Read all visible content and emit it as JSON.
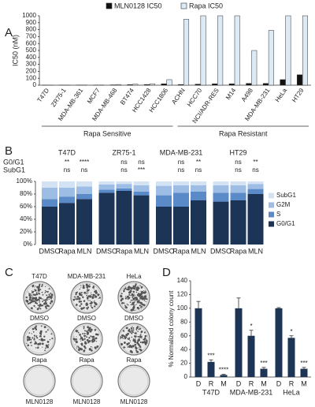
{
  "chart_data": [
    {
      "type": "grouped-bar",
      "panel": "A",
      "ylabel": "IC50 (nM)",
      "categories": [
        "T47D",
        "ZR75-1",
        "MDA-MB-361",
        "MCF7",
        "MDA-MB-468",
        "BT474",
        "HCC1428",
        "HCC1806",
        "ACHN",
        "HCC70",
        "NCI/ADR-RES",
        "M14",
        "A498",
        "MDA-MB-231",
        "HeLa",
        "HT29"
      ],
      "group_labels": [
        "Rapa Sensitive",
        "Rapa Resistant"
      ],
      "series": [
        {
          "name": "MLN0128 IC50",
          "color": "#111111",
          "values": [
            2,
            2,
            3,
            3,
            5,
            8,
            10,
            20,
            10,
            15,
            20,
            20,
            25,
            25,
            80,
            150
          ]
        },
        {
          "name": "Rapa IC50",
          "color": "#dceaf6",
          "values": [
            2,
            2,
            3,
            3,
            10,
            15,
            20,
            80,
            950,
            1000,
            1000,
            1000,
            500,
            790,
            1000,
            1000
          ]
        }
      ],
      "ylim": [
        0,
        1000
      ],
      "yticks": [
        0,
        100,
        200,
        300,
        400,
        500,
        600,
        700,
        800,
        900,
        1000
      ],
      "grid": false
    },
    {
      "type": "stacked-bar",
      "panel": "B",
      "groups": [
        "T47D",
        "ZR75-1",
        "MDA-MB-231",
        "HT29"
      ],
      "categories": [
        "DMSO",
        "Rapa",
        "MLN",
        "DMSO",
        "Rapa",
        "MLN",
        "DMSO",
        "Rapa",
        "MLN",
        "DMSO",
        "Rapa",
        "MLN"
      ],
      "significance": [
        {
          "label": "G0/G1",
          "values": [
            null,
            "**",
            "****",
            null,
            "ns",
            "ns",
            null,
            "ns",
            "**",
            null,
            "ns",
            "**"
          ]
        },
        {
          "label": "SubG1",
          "values": [
            null,
            "ns",
            "ns",
            null,
            "ns",
            "***",
            null,
            "ns",
            "ns",
            null,
            "ns",
            "ns"
          ]
        }
      ],
      "series": [
        {
          "name": "G0/G1",
          "color": "#1c3557",
          "values": [
            60,
            66,
            72,
            82,
            85,
            78,
            60,
            60,
            70,
            68,
            70,
            80
          ]
        },
        {
          "name": "S",
          "color": "#5a8bc8",
          "values": [
            12,
            10,
            8,
            5,
            4,
            6,
            18,
            22,
            14,
            14,
            12,
            8
          ]
        },
        {
          "name": "G2M",
          "color": "#9dbde4",
          "values": [
            18,
            14,
            12,
            8,
            7,
            10,
            15,
            12,
            10,
            12,
            12,
            8
          ]
        },
        {
          "name": "SubG1",
          "color": "#d3e3f4",
          "values": [
            10,
            10,
            8,
            5,
            4,
            6,
            7,
            6,
            6,
            6,
            6,
            4
          ]
        }
      ],
      "ylim": [
        0,
        100
      ],
      "yticks": [
        {
          "value": 0,
          "label": "0%"
        },
        {
          "value": 20,
          "label": "20%"
        },
        {
          "value": 40,
          "label": "40%"
        },
        {
          "value": 60,
          "label": "60%"
        },
        {
          "value": 80,
          "label": "80%"
        },
        {
          "value": 100,
          "label": "100%"
        }
      ],
      "grid": false
    },
    {
      "type": "error-bar",
      "panel": "D",
      "ylabel": "% Normalized colony count",
      "groups": [
        "T47D",
        "MDA-MB-231",
        "HeLa"
      ],
      "categories": [
        "D",
        "R",
        "M",
        "D",
        "R",
        "M",
        "D",
        "R",
        "M"
      ],
      "values": [
        100,
        22,
        3,
        100,
        60,
        12,
        100,
        57,
        12
      ],
      "errors": [
        10,
        3,
        1,
        15,
        8,
        2,
        1,
        3,
        2
      ],
      "annotations": [
        null,
        "***",
        "****",
        null,
        "*",
        "***",
        null,
        "*",
        "***"
      ],
      "color": "#1c3557",
      "ylim": [
        0,
        140
      ],
      "yticks": [
        0,
        20,
        40,
        60,
        80,
        100,
        120,
        140
      ],
      "grid": false
    }
  ],
  "panel_c": {
    "panel": "C",
    "columns": [
      "T47D",
      "MDA-MB-231",
      "HeLa"
    ],
    "rows": [
      [
        "DMSO",
        "DMSO",
        "DMSO"
      ],
      [
        "Rapa",
        "Rapa",
        "Rapa"
      ],
      [
        "MLN0128",
        "MLN0128",
        "MLN0128"
      ]
    ]
  }
}
